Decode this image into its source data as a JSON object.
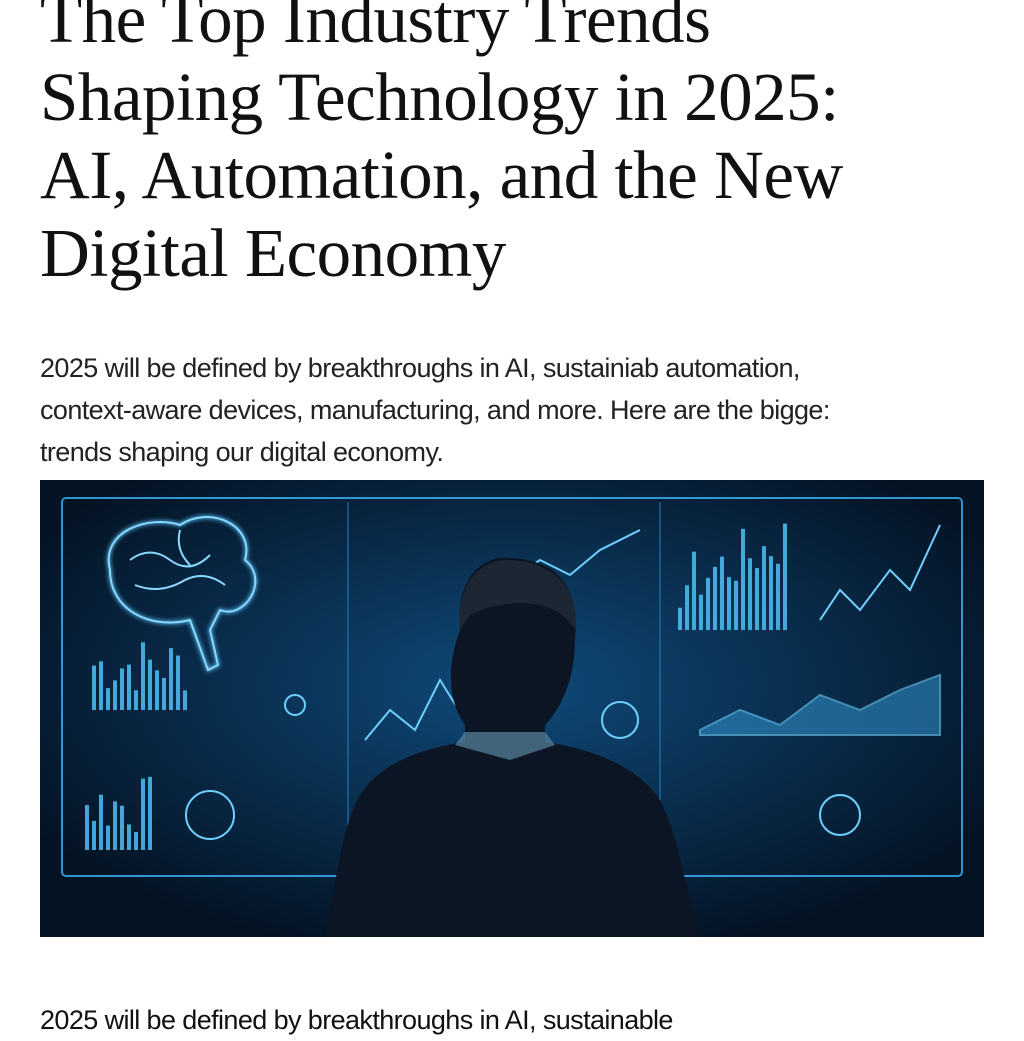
{
  "article": {
    "title_lines": [
      "The Top Industry Trends",
      "Shaping Technology in 2025:",
      "AI, Automation, and the New",
      "Digital Economy"
    ],
    "dek_lines": [
      "2025 will be defined by breakthroughs in AI, sustainiab automation,",
      "context-aware devices, manufacturing, and more. Here are the bigge:",
      "trends shaping our digital economy."
    ],
    "hero_image": {
      "subject": "person-viewing-ai-dashboard",
      "accent": "#3fb6ff",
      "background": "#06192e"
    },
    "body_start": "2025 will be defined by breakthroughs in AI, sustainable"
  }
}
